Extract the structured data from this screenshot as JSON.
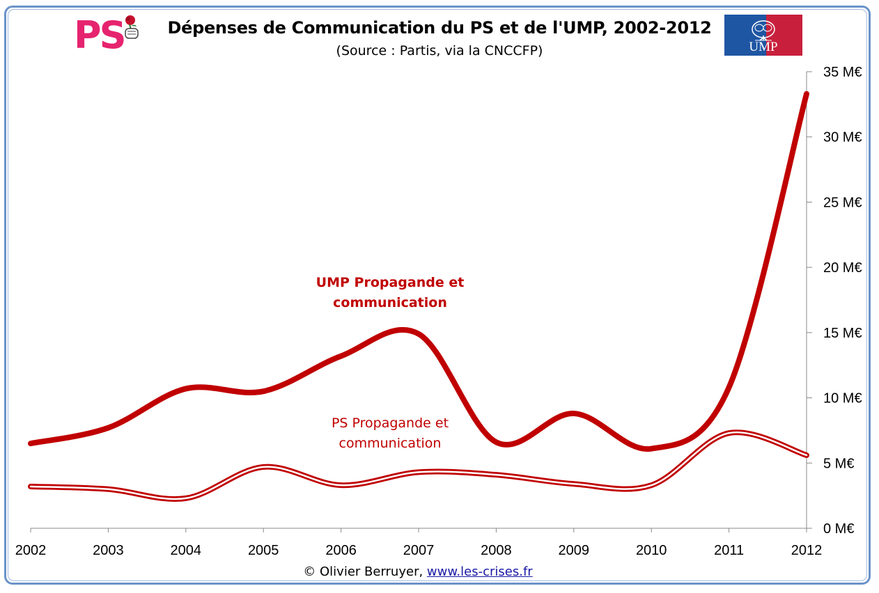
{
  "logos": {
    "ps": "PS",
    "ump": "UMP"
  },
  "footer": {
    "credit": "© Olivier Berruyer,",
    "link": "www.les-crises.fr"
  },
  "colors": {
    "line": "#c00000",
    "ps_brand": "#e6236e",
    "ump_blue": "#1f56a3",
    "ump_red": "#c8203c",
    "frame": "#6a93c9"
  },
  "chart_data": {
    "type": "line",
    "title": "Dépenses de Communication du PS et de l'UMP, 2002-2012",
    "subtitle": "(Source : Partis, via la CNCCFP)",
    "x": [
      "2002",
      "2003",
      "2004",
      "2005",
      "2006",
      "2007",
      "2008",
      "2009",
      "2010",
      "2011",
      "2012"
    ],
    "ylim": [
      0,
      35
    ],
    "y_ticks": [
      "0 M€",
      "5 M€",
      "10 M€",
      "15 M€",
      "20 M€",
      "25 M€",
      "30 M€",
      "35 M€"
    ],
    "y_axis_side": "right",
    "grid": false,
    "legend": "inline labels",
    "series": [
      {
        "name": "UMP  Propagande et communication",
        "label_lines": [
          "UMP  Propagande et",
          "communication"
        ],
        "values": [
          6.5,
          7.7,
          10.7,
          10.5,
          13.2,
          14.9,
          6.6,
          8.8,
          6.1,
          10.8,
          33.3
        ]
      },
      {
        "name": "PS  Propagande et communication",
        "label_lines": [
          "PS  Propagande et",
          "communication"
        ],
        "values": [
          3.2,
          3.0,
          2.3,
          4.7,
          3.3,
          4.3,
          4.1,
          3.4,
          3.3,
          7.3,
          5.6
        ]
      }
    ]
  }
}
